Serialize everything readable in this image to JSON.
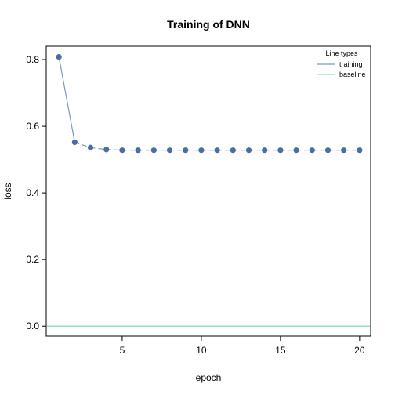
{
  "chart_data": {
    "type": "line",
    "title": "Training of DNN",
    "xlabel": "epoch",
    "ylabel": "loss",
    "xlim": [
      0.2,
      20.7
    ],
    "ylim": [
      -0.03,
      0.84
    ],
    "x_ticks": [
      5,
      10,
      15,
      20
    ],
    "y_ticks": [
      0.0,
      0.2,
      0.4,
      0.6,
      0.8
    ],
    "y_tick_labels": [
      "0.0",
      "0.2",
      "0.4",
      "0.6",
      "0.8"
    ],
    "grid": false,
    "legend": {
      "title": "Line types",
      "placement": "top-right",
      "entries": [
        {
          "label": "training",
          "color": "#7a96c2"
        },
        {
          "label": "baseline",
          "color": "#8ee0c3"
        }
      ]
    },
    "series": [
      {
        "name": "training",
        "line_color": "#7a96c2",
        "point_color": "#4a6ea3",
        "line_style": "solid-then-dashed",
        "x": [
          1,
          2,
          3,
          4,
          5,
          6,
          7,
          8,
          9,
          10,
          11,
          12,
          13,
          14,
          15,
          16,
          17,
          18,
          19,
          20
        ],
        "y": [
          0.808,
          0.552,
          0.536,
          0.53,
          0.528,
          0.528,
          0.528,
          0.528,
          0.528,
          0.528,
          0.528,
          0.528,
          0.528,
          0.528,
          0.528,
          0.528,
          0.528,
          0.528,
          0.528,
          0.528
        ]
      },
      {
        "name": "baseline",
        "line_color": "#8ee0c3",
        "y": [
          0.0
        ]
      }
    ]
  }
}
